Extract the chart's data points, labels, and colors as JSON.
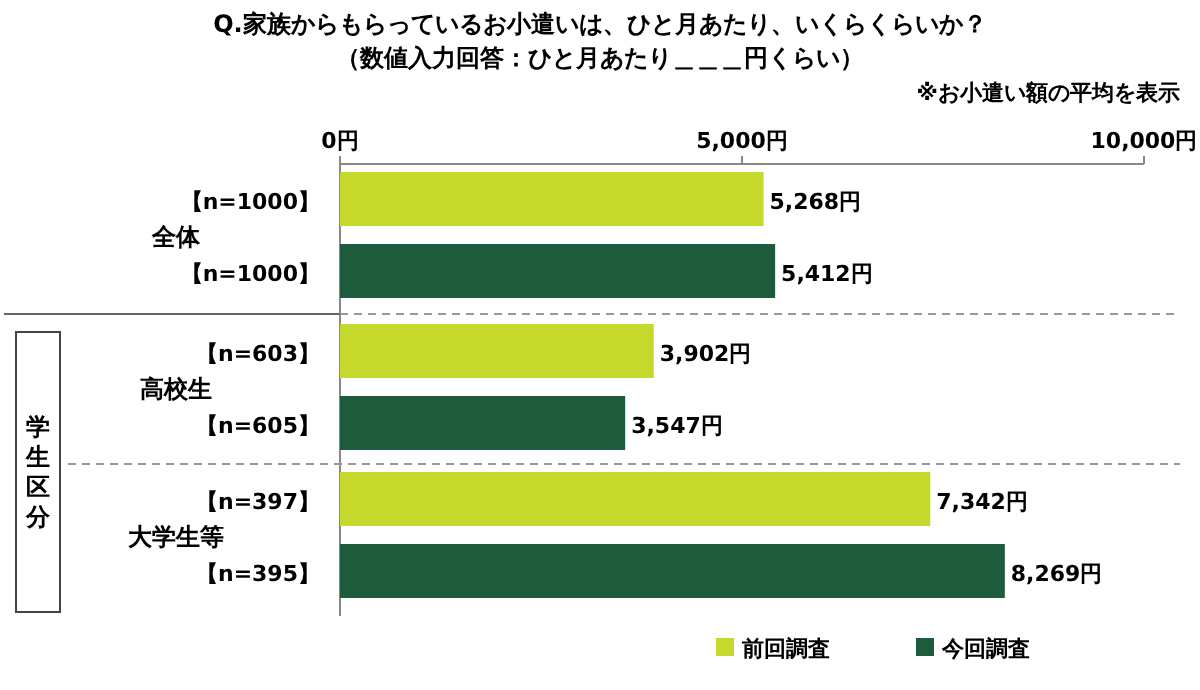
{
  "chart_data": {
    "type": "bar",
    "orientation": "horizontal",
    "title": "Q.家族からもらっているお小遣いは、ひと月あたり、いくらくらいか？",
    "subtitle": "（数値入力回答：ひと月あたり＿＿＿円くらい）",
    "categories": [
      "全体",
      "高校生",
      "大学生等"
    ],
    "series": [
      {
        "name": "前回調査",
        "color": "#c5d92d",
        "values": [
          5268,
          3902,
          7342
        ],
        "value_labels": [
          "5,268円",
          "3,902円",
          "7,342円"
        ]
      },
      {
        "name": "今回調査",
        "color": "#1e5b3d",
        "values": [
          5412,
          3547,
          8269
        ],
        "value_labels": [
          "5,412円",
          "3,547円",
          "8,269円"
        ]
      }
    ],
    "xlim": [
      0,
      10000
    ],
    "xticks": [
      {
        "value": 0,
        "label": "0円"
      },
      {
        "value": 5000,
        "label": "5,000円"
      },
      {
        "value": 10000,
        "label": "10,000円"
      }
    ],
    "legend": "bottom right",
    "annotations": [
      "※お小遣い額の平均を表示",
      "【n=1000】",
      "【n=1000】",
      "【n=603】",
      "【n=605】",
      "【n=397】",
      "【n=395】",
      "学生区分"
    ]
  }
}
